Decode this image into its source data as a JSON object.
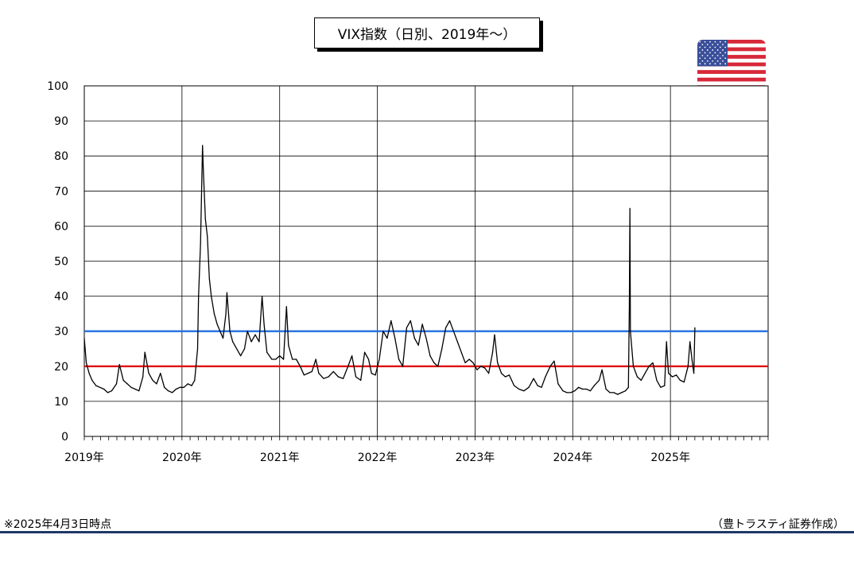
{
  "chart_data": {
    "type": "line",
    "title": "VIX指数（日別、2019年～）",
    "xlabel": "",
    "ylabel": "",
    "ylim": [
      0,
      100
    ],
    "yticks": [
      0,
      10,
      20,
      30,
      40,
      50,
      60,
      70,
      80,
      90,
      100
    ],
    "xlim": [
      2019.0,
      2026.0
    ],
    "xticks": [
      {
        "x": 2019,
        "label": "2019年"
      },
      {
        "x": 2020,
        "label": "2020年"
      },
      {
        "x": 2021,
        "label": "2021年"
      },
      {
        "x": 2022,
        "label": "2022年"
      },
      {
        "x": 2023,
        "label": "2023年"
      },
      {
        "x": 2024,
        "label": "2024年"
      },
      {
        "x": 2025,
        "label": "2025年"
      }
    ],
    "grid": true,
    "reference_lines": [
      {
        "y": 30,
        "color": "#1f6fe0"
      },
      {
        "y": 20,
        "color": "#e01010"
      }
    ],
    "series": [
      {
        "color": "#000000",
        "points": [
          [
            2019.0,
            28.0
          ],
          [
            2019.02,
            21.0
          ],
          [
            2019.05,
            18.0
          ],
          [
            2019.08,
            16.0
          ],
          [
            2019.12,
            14.5
          ],
          [
            2019.16,
            14.0
          ],
          [
            2019.2,
            13.5
          ],
          [
            2019.24,
            12.5
          ],
          [
            2019.28,
            13.0
          ],
          [
            2019.33,
            15.0
          ],
          [
            2019.36,
            20.5
          ],
          [
            2019.4,
            16.0
          ],
          [
            2019.44,
            15.0
          ],
          [
            2019.48,
            14.0
          ],
          [
            2019.52,
            13.5
          ],
          [
            2019.56,
            13.0
          ],
          [
            2019.6,
            17.0
          ],
          [
            2019.62,
            24.0
          ],
          [
            2019.66,
            18.0
          ],
          [
            2019.7,
            16.0
          ],
          [
            2019.74,
            15.0
          ],
          [
            2019.78,
            18.0
          ],
          [
            2019.82,
            14.0
          ],
          [
            2019.86,
            13.0
          ],
          [
            2019.9,
            12.5
          ],
          [
            2019.94,
            13.5
          ],
          [
            2019.98,
            14.0
          ],
          [
            2020.02,
            14.0
          ],
          [
            2020.06,
            15.0
          ],
          [
            2020.1,
            14.5
          ],
          [
            2020.13,
            16.0
          ],
          [
            2020.16,
            25.0
          ],
          [
            2020.17,
            40.0
          ],
          [
            2020.19,
            55.0
          ],
          [
            2020.21,
            83.0
          ],
          [
            2020.22,
            75.0
          ],
          [
            2020.24,
            62.0
          ],
          [
            2020.26,
            57.0
          ],
          [
            2020.28,
            45.0
          ],
          [
            2020.3,
            40.0
          ],
          [
            2020.33,
            35.0
          ],
          [
            2020.36,
            32.0
          ],
          [
            2020.39,
            30.0
          ],
          [
            2020.42,
            28.0
          ],
          [
            2020.45,
            35.0
          ],
          [
            2020.46,
            41.0
          ],
          [
            2020.49,
            30.0
          ],
          [
            2020.52,
            27.0
          ],
          [
            2020.56,
            25.0
          ],
          [
            2020.6,
            23.0
          ],
          [
            2020.64,
            25.0
          ],
          [
            2020.67,
            30.0
          ],
          [
            2020.71,
            27.0
          ],
          [
            2020.75,
            29.0
          ],
          [
            2020.79,
            27.0
          ],
          [
            2020.82,
            40.0
          ],
          [
            2020.84,
            32.0
          ],
          [
            2020.87,
            24.0
          ],
          [
            2020.92,
            22.0
          ],
          [
            2020.96,
            22.0
          ],
          [
            2021.0,
            23.0
          ],
          [
            2021.04,
            22.0
          ],
          [
            2021.07,
            37.0
          ],
          [
            2021.09,
            26.0
          ],
          [
            2021.13,
            22.0
          ],
          [
            2021.17,
            22.0
          ],
          [
            2021.21,
            20.0
          ],
          [
            2021.25,
            17.5
          ],
          [
            2021.29,
            18.0
          ],
          [
            2021.33,
            18.5
          ],
          [
            2021.37,
            22.0
          ],
          [
            2021.4,
            18.0
          ],
          [
            2021.45,
            16.5
          ],
          [
            2021.5,
            17.0
          ],
          [
            2021.55,
            18.5
          ],
          [
            2021.6,
            17.0
          ],
          [
            2021.65,
            16.5
          ],
          [
            2021.7,
            20.0
          ],
          [
            2021.74,
            23.0
          ],
          [
            2021.78,
            17.0
          ],
          [
            2021.83,
            16.0
          ],
          [
            2021.87,
            24.0
          ],
          [
            2021.91,
            22.0
          ],
          [
            2021.94,
            18.0
          ],
          [
            2021.98,
            17.5
          ],
          [
            2022.02,
            22.0
          ],
          [
            2022.06,
            30.0
          ],
          [
            2022.1,
            28.0
          ],
          [
            2022.14,
            33.0
          ],
          [
            2022.18,
            28.0
          ],
          [
            2022.22,
            22.0
          ],
          [
            2022.26,
            20.0
          ],
          [
            2022.3,
            31.0
          ],
          [
            2022.34,
            33.0
          ],
          [
            2022.38,
            28.0
          ],
          [
            2022.42,
            26.0
          ],
          [
            2022.46,
            32.0
          ],
          [
            2022.5,
            28.0
          ],
          [
            2022.54,
            23.0
          ],
          [
            2022.58,
            21.0
          ],
          [
            2022.62,
            20.0
          ],
          [
            2022.66,
            25.0
          ],
          [
            2022.7,
            31.0
          ],
          [
            2022.74,
            33.0
          ],
          [
            2022.78,
            30.0
          ],
          [
            2022.82,
            27.0
          ],
          [
            2022.86,
            24.0
          ],
          [
            2022.9,
            21.0
          ],
          [
            2022.94,
            22.0
          ],
          [
            2022.98,
            21.0
          ],
          [
            2023.02,
            19.0
          ],
          [
            2023.06,
            20.0
          ],
          [
            2023.1,
            19.5
          ],
          [
            2023.14,
            18.0
          ],
          [
            2023.18,
            24.0
          ],
          [
            2023.2,
            29.0
          ],
          [
            2023.23,
            21.0
          ],
          [
            2023.27,
            18.0
          ],
          [
            2023.31,
            17.0
          ],
          [
            2023.35,
            17.5
          ],
          [
            2023.4,
            14.5
          ],
          [
            2023.45,
            13.5
          ],
          [
            2023.5,
            13.0
          ],
          [
            2023.55,
            14.0
          ],
          [
            2023.6,
            16.5
          ],
          [
            2023.64,
            14.5
          ],
          [
            2023.68,
            14.0
          ],
          [
            2023.72,
            17.0
          ],
          [
            2023.77,
            20.0
          ],
          [
            2023.81,
            21.5
          ],
          [
            2023.85,
            15.0
          ],
          [
            2023.9,
            13.0
          ],
          [
            2023.94,
            12.5
          ],
          [
            2023.98,
            12.5
          ],
          [
            2024.02,
            13.0
          ],
          [
            2024.06,
            14.0
          ],
          [
            2024.1,
            13.5
          ],
          [
            2024.14,
            13.5
          ],
          [
            2024.18,
            13.0
          ],
          [
            2024.22,
            14.5
          ],
          [
            2024.27,
            16.0
          ],
          [
            2024.3,
            19.0
          ],
          [
            2024.34,
            13.5
          ],
          [
            2024.38,
            12.5
          ],
          [
            2024.42,
            12.5
          ],
          [
            2024.46,
            12.0
          ],
          [
            2024.5,
            12.5
          ],
          [
            2024.54,
            13.0
          ],
          [
            2024.57,
            14.0
          ],
          [
            2024.58,
            38.0
          ],
          [
            2024.585,
            65.0
          ],
          [
            2024.59,
            30.0
          ],
          [
            2024.62,
            20.0
          ],
          [
            2024.66,
            17.0
          ],
          [
            2024.7,
            16.0
          ],
          [
            2024.74,
            18.0
          ],
          [
            2024.78,
            20.0
          ],
          [
            2024.82,
            21.0
          ],
          [
            2024.86,
            16.0
          ],
          [
            2024.9,
            14.0
          ],
          [
            2024.94,
            14.5
          ],
          [
            2024.96,
            27.0
          ],
          [
            2024.98,
            18.0
          ],
          [
            2025.02,
            17.0
          ],
          [
            2025.06,
            17.5
          ],
          [
            2025.1,
            16.0
          ],
          [
            2025.14,
            15.5
          ],
          [
            2025.18,
            20.0
          ],
          [
            2025.2,
            27.0
          ],
          [
            2025.22,
            22.0
          ],
          [
            2025.24,
            18.0
          ],
          [
            2025.25,
            31.0
          ]
        ]
      }
    ]
  },
  "footnote": "※2025年4月3日時点",
  "credit": "（豊トラスティ証券作成）",
  "flag": {
    "name": "us-flag-icon",
    "red": "#d62839",
    "blue": "#3a4f9a"
  }
}
